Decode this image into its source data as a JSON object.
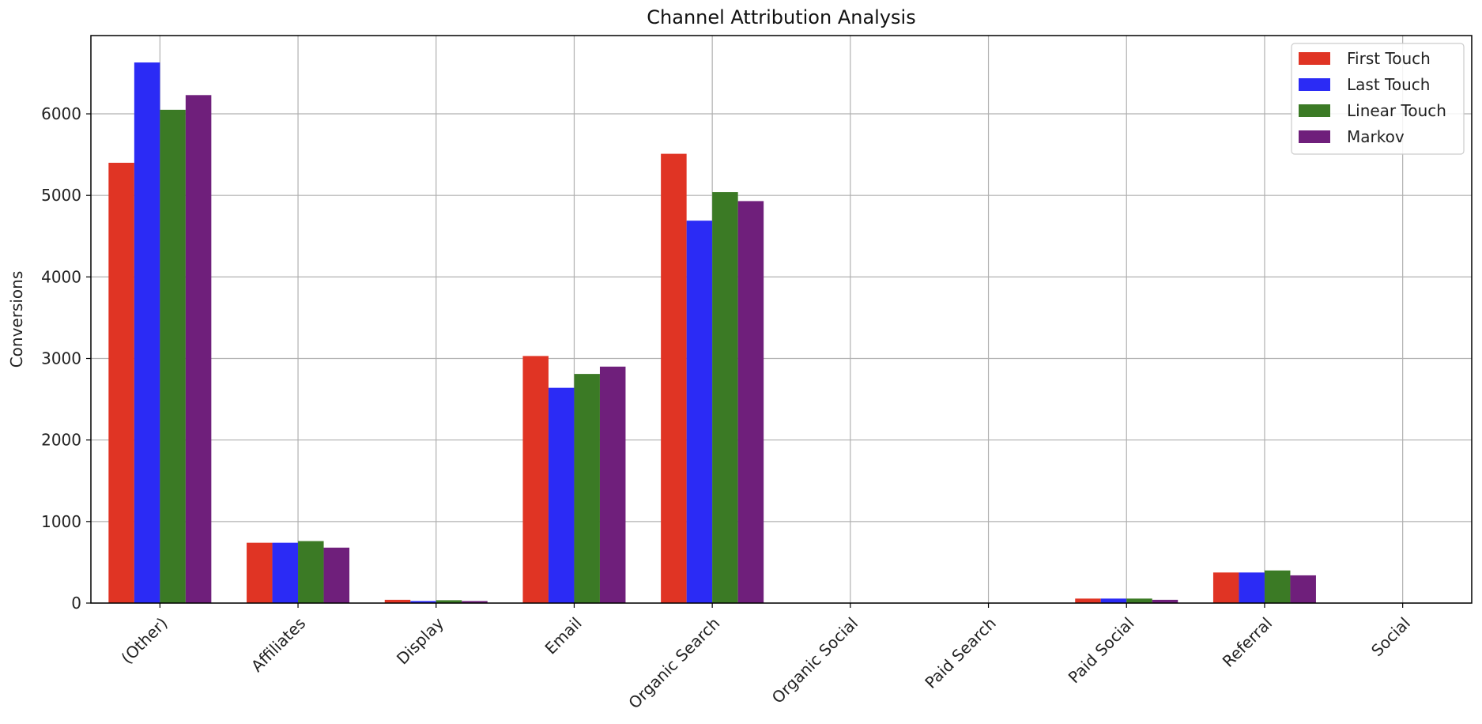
{
  "chart_data": {
    "type": "bar",
    "title": "Channel Attribution Analysis",
    "xlabel": "",
    "ylabel": "Conversions",
    "categories": [
      "(Other)",
      "Affiliates",
      "Display",
      "Email",
      "Organic Search",
      "Organic Social",
      "Paid Search",
      "Paid Social",
      "Referral",
      "Social"
    ],
    "series": [
      {
        "name": "First Touch",
        "color": "#e03424",
        "values": [
          5400,
          740,
          40,
          3030,
          5510,
          0,
          0,
          55,
          375,
          0
        ]
      },
      {
        "name": "Last Touch",
        "color": "#2b2bf5",
        "values": [
          6630,
          740,
          25,
          2640,
          4690,
          0,
          0,
          55,
          375,
          0
        ]
      },
      {
        "name": "Linear Touch",
        "color": "#3b7a25",
        "values": [
          6050,
          760,
          35,
          2810,
          5040,
          0,
          0,
          55,
          400,
          0
        ]
      },
      {
        "name": "Markov",
        "color": "#6f1f7b",
        "values": [
          6230,
          680,
          25,
          2900,
          4930,
          0,
          0,
          40,
          340,
          0
        ]
      }
    ],
    "yticks": [
      0,
      1000,
      2000,
      3000,
      4000,
      5000,
      6000
    ],
    "ylim": [
      0,
      6960
    ],
    "grid": true,
    "legend_position": "top-right"
  }
}
